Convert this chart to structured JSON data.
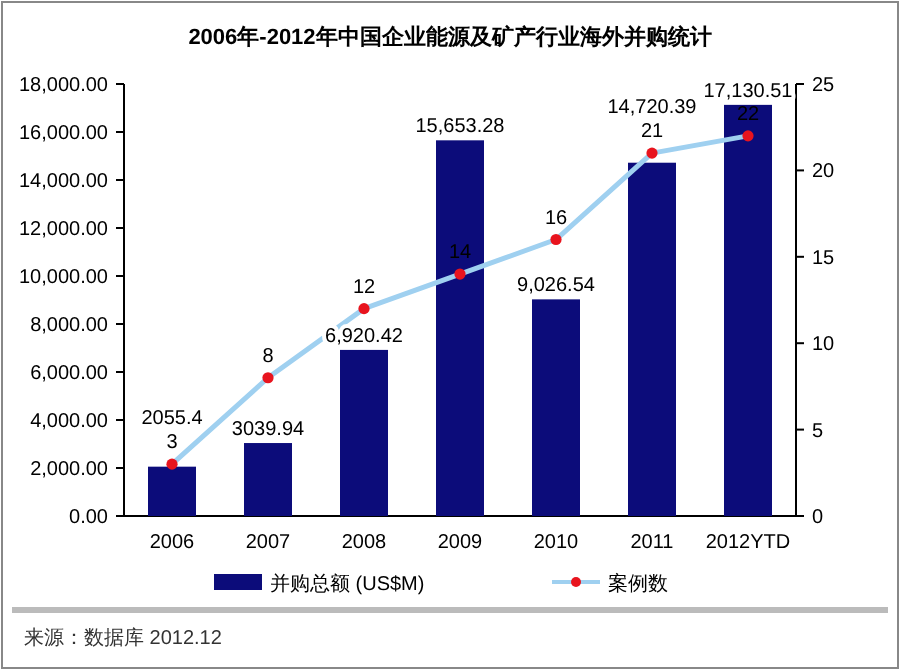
{
  "chart_data": {
    "type": "bar",
    "title": "2006年-2012年中国企业能源及矿产行业海外并购统计",
    "categories": [
      "2006",
      "2007",
      "2008",
      "2009",
      "2010",
      "2011",
      "2012YTD"
    ],
    "series": [
      {
        "name": "并购总额 (US$M)",
        "color": "#0c0c7a",
        "values": [
          2055.4,
          3039.94,
          6920.42,
          15653.28,
          9026.54,
          14720.39,
          17130.51
        ],
        "value_labels": [
          "2055.4",
          "3039.94",
          "6,920.42",
          "15,653.28",
          "9,026.54",
          "14,720.39",
          "17,130.51"
        ]
      },
      {
        "name": "案例数",
        "type": "line",
        "axis": "y2",
        "color": "#9fd0f0",
        "colors": [
          "#e8141e",
          "#e8141e",
          "#e8141e",
          "#e8141e",
          "#e8141e",
          "#e8141e",
          "#e8141e"
        ],
        "marker": "circle",
        "values": [
          3,
          8,
          12,
          14,
          16,
          21,
          22
        ],
        "value_labels": [
          "3",
          "8",
          "12",
          "14",
          "16",
          "21",
          "22"
        ]
      }
    ],
    "ylim": [
      0,
      18000
    ],
    "yticks": [
      {
        "value": 0,
        "label": "0.00"
      },
      {
        "value": 2000,
        "label": "2,000.00"
      },
      {
        "value": 4000,
        "label": "4,000.00"
      },
      {
        "value": 6000,
        "label": "6,000.00"
      },
      {
        "value": 8000,
        "label": "8,000.00"
      },
      {
        "value": 10000,
        "label": "10,000.00"
      },
      {
        "value": 12000,
        "label": "12,000.00"
      },
      {
        "value": 14000,
        "label": "14,000.00"
      },
      {
        "value": 16000,
        "label": "16,000.00"
      },
      {
        "value": 18000,
        "label": "18,000.00"
      }
    ],
    "y2lim": [
      0,
      25
    ],
    "y2ticks": [
      0,
      5,
      10,
      15,
      20,
      25
    ],
    "legend": "bottom",
    "grid": false,
    "annotations": [
      "来源：数据库 2012.12"
    ]
  }
}
